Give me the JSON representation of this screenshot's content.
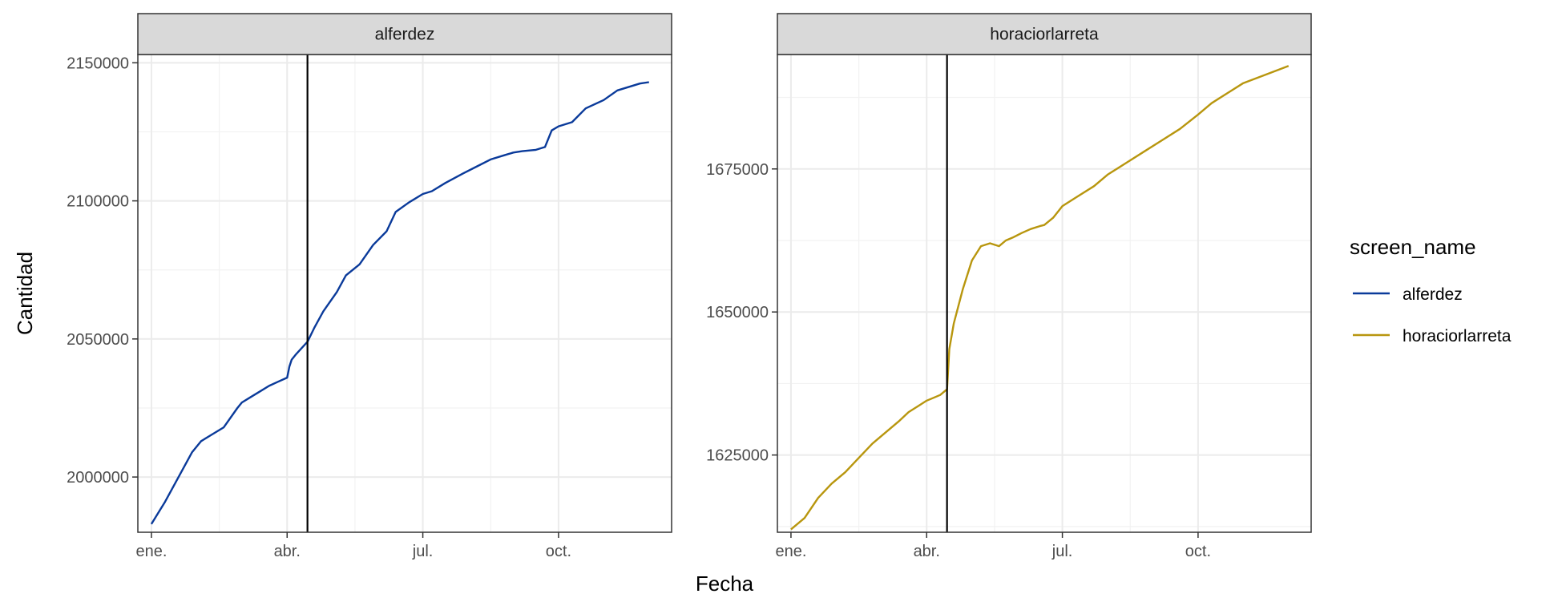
{
  "chart_data": {
    "type": "line",
    "xlabel": "Fecha",
    "ylabel": "Cantidad",
    "x_tick_labels": [
      "ene.",
      "abr.",
      "jul.",
      "oct."
    ],
    "x_tick_months": [
      1,
      4,
      7,
      10
    ],
    "xlim_months": [
      0.7,
      12.5
    ],
    "vline_month": 4.45,
    "grid": true,
    "legend": {
      "title": "screen_name",
      "position": "right",
      "items": [
        {
          "label": "alferdez",
          "color": "#0a3a9a"
        },
        {
          "label": "horaciorlarreta",
          "color": "#b8960e"
        }
      ]
    },
    "panels": [
      {
        "strip": "alferdez",
        "series_name": "alferdez",
        "color": "#0a3a9a",
        "ylim": [
          1980000,
          2153000
        ],
        "y_ticks": [
          2000000,
          2050000,
          2100000,
          2150000
        ],
        "y_tick_labels": [
          "2000000",
          "2050000",
          "2100000",
          "2150000"
        ],
        "x": [
          1.0,
          1.3,
          1.6,
          1.9,
          2.1,
          2.3,
          2.6,
          2.9,
          3.0,
          3.2,
          3.4,
          3.6,
          3.8,
          4.0,
          4.05,
          4.1,
          4.2,
          4.45,
          4.6,
          4.8,
          5.1,
          5.3,
          5.6,
          5.9,
          6.2,
          6.4,
          6.7,
          7.0,
          7.2,
          7.5,
          7.9,
          8.2,
          8.5,
          8.8,
          9.0,
          9.2,
          9.5,
          9.7,
          9.85,
          10.0,
          10.3,
          10.6,
          11.0,
          11.3,
          11.8,
          12.0
        ],
        "values": [
          1983000,
          1991000,
          2000000,
          2009000,
          2013000,
          2015000,
          2018000,
          2025000,
          2027000,
          2029000,
          2031000,
          2033000,
          2034500,
          2036000,
          2040000,
          2042500,
          2044500,
          2049000,
          2054000,
          2060000,
          2067000,
          2073000,
          2077000,
          2084000,
          2089000,
          2096000,
          2099500,
          2102500,
          2103500,
          2106500,
          2110000,
          2112500,
          2115000,
          2116500,
          2117500,
          2118000,
          2118500,
          2119500,
          2125500,
          2127000,
          2128500,
          2133500,
          2136500,
          2140000,
          2142500,
          2143000
        ]
      },
      {
        "strip": "horaciorlarreta",
        "series_name": "horaciorlarreta",
        "color": "#b8960e",
        "ylim": [
          1611500,
          1695000
        ],
        "y_ticks": [
          1625000,
          1650000,
          1675000
        ],
        "y_tick_labels": [
          "1625000",
          "1650000",
          "1675000"
        ],
        "x": [
          1.0,
          1.3,
          1.6,
          1.9,
          2.2,
          2.5,
          2.8,
          3.1,
          3.4,
          3.6,
          3.8,
          4.0,
          4.15,
          4.3,
          4.45,
          4.5,
          4.6,
          4.8,
          5.0,
          5.2,
          5.4,
          5.6,
          5.75,
          5.9,
          6.1,
          6.3,
          6.5,
          6.6,
          6.8,
          7.0,
          7.3,
          7.7,
          8.0,
          8.4,
          8.8,
          9.2,
          9.6,
          10.0,
          10.3,
          10.7,
          11.0,
          11.5,
          12.0
        ],
        "values": [
          1612000,
          1614000,
          1617500,
          1620000,
          1622000,
          1624500,
          1627000,
          1629000,
          1631000,
          1632500,
          1633500,
          1634500,
          1635000,
          1635500,
          1636500,
          1643500,
          1648000,
          1654000,
          1659000,
          1661500,
          1662000,
          1661500,
          1662500,
          1663000,
          1663800,
          1664500,
          1665000,
          1665200,
          1666500,
          1668500,
          1670000,
          1672000,
          1674000,
          1676000,
          1678000,
          1680000,
          1682000,
          1684500,
          1686500,
          1688500,
          1690000,
          1691500,
          1693000
        ]
      }
    ]
  }
}
